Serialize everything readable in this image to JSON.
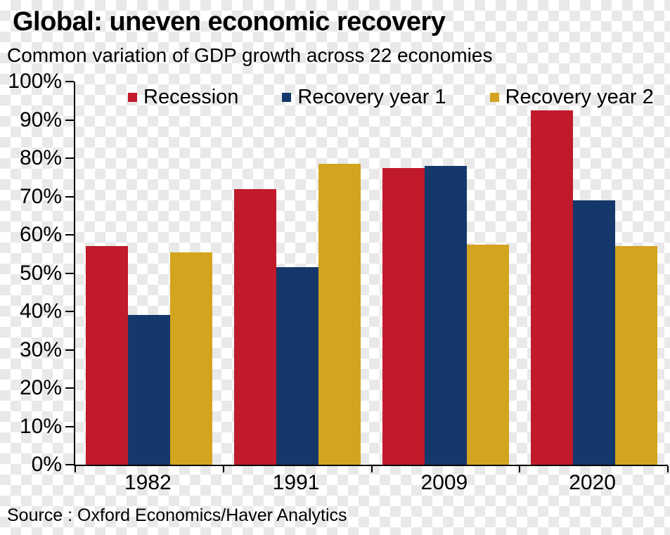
{
  "title": "Global: uneven economic recovery",
  "subtitle": "Common variation of GDP growth across 22 economies",
  "source_note": "Source : Oxford Economics/Haver Analytics",
  "colors": {
    "recession": "#c01a2b",
    "recovery_year_1": "#14386b",
    "recovery_year_2": "#d2a41f",
    "axis": "#000000",
    "checker_gray": "#e9e9e9"
  },
  "chart_data": {
    "type": "bar",
    "title": "Global: uneven economic recovery",
    "subtitle": "Common variation of GDP growth across 22 economies",
    "source": "Source : Oxford Economics/Haver Analytics",
    "categories": [
      "1982",
      "1991",
      "2009",
      "2020"
    ],
    "series": [
      {
        "name": "Recession",
        "color": "#c01a2b",
        "values": [
          57,
          72,
          77.5,
          92.5
        ]
      },
      {
        "name": "Recovery year 1",
        "color": "#14386b",
        "values": [
          39,
          51.5,
          78,
          69
        ]
      },
      {
        "name": "Recovery year 2",
        "color": "#d2a41f",
        "values": [
          55.5,
          78.5,
          57.5,
          57
        ]
      }
    ],
    "ylim": [
      0,
      100
    ],
    "ytick_step": 10,
    "ytick_labels": [
      "0%",
      "10%",
      "20%",
      "30%",
      "40%",
      "50%",
      "60%",
      "70%",
      "80%",
      "90%",
      "100%"
    ],
    "legend_position": "top",
    "grid": false
  }
}
